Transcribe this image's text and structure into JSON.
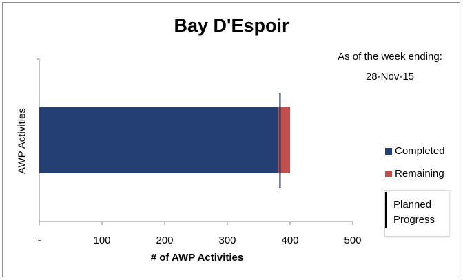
{
  "as_of": {
    "label": "As of the week ending:",
    "date": "28-Nov-15"
  },
  "colors": {
    "completed": "#243F73",
    "remaining": "#C0504D",
    "planned": "#0F2147"
  },
  "chart_data": {
    "type": "bar",
    "orientation": "horizontal",
    "stacked": true,
    "title": "Bay D'Espoir",
    "xlabel": "# of AWP Activities",
    "ylabel": "AWP Activities",
    "xlim": [
      0,
      500
    ],
    "x_ticks": [
      0,
      100,
      200,
      300,
      400,
      500
    ],
    "x_tick_labels": [
      "-",
      "100",
      "200",
      "300",
      "400",
      "500"
    ],
    "grid": false,
    "legend_position": "right",
    "categories": [
      "AWP Activities"
    ],
    "series": [
      {
        "name": "Completed",
        "values": [
          381
        ]
      },
      {
        "name": "Remaining",
        "values": [
          19
        ]
      }
    ],
    "planned_progress": {
      "name": "Planned Progress",
      "value": 384
    }
  }
}
